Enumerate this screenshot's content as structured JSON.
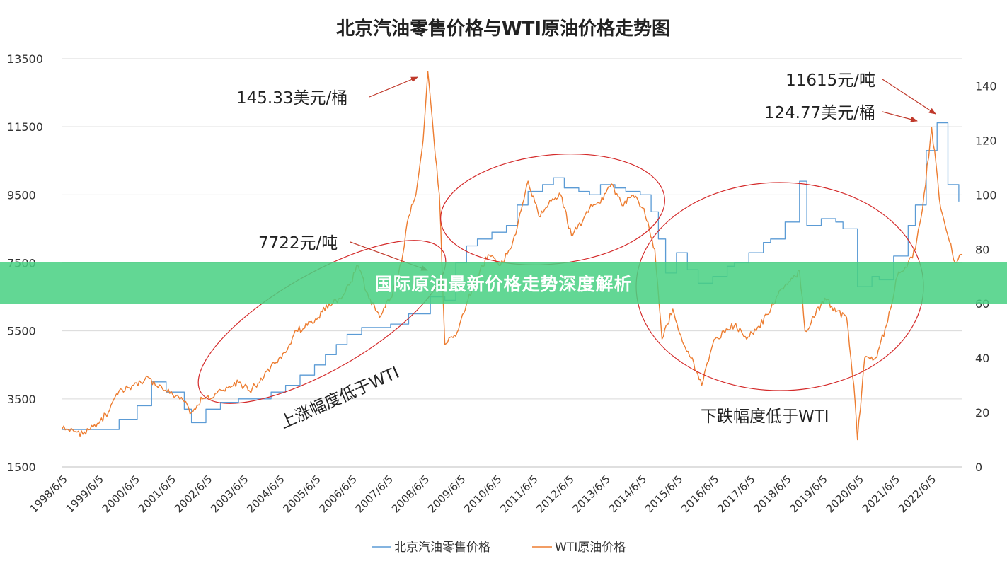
{
  "banner": {
    "text": "国际原油最新价格走势深度解析"
  },
  "chart_data": {
    "type": "line",
    "title": "北京汽油零售价格与WTI原油价格走势图",
    "x_tick_labels": [
      "1998/6/5",
      "1999/6/5",
      "2000/6/5",
      "2001/6/5",
      "2002/6/5",
      "2003/6/5",
      "2004/6/5",
      "2005/6/5",
      "2006/6/5",
      "2007/6/5",
      "2008/6/5",
      "2009/6/5",
      "2010/6/5",
      "2011/6/5",
      "2012/6/5",
      "2013/6/5",
      "2014/6/5",
      "2015/6/5",
      "2016/6/5",
      "2017/6/5",
      "2018/6/5",
      "2019/6/5",
      "2020/6/5",
      "2021/6/5",
      "2022/6/5"
    ],
    "y_left": {
      "ylim": [
        1500,
        13500
      ],
      "ticks": [
        1500,
        3500,
        5500,
        7500,
        9500,
        11500,
        13500
      ]
    },
    "y_right": {
      "ylim": [
        0,
        150
      ],
      "ticks": [
        0,
        20,
        40,
        60,
        80,
        100,
        120,
        140
      ]
    },
    "grid": true,
    "legend_position": "bottom",
    "colors": {
      "beijing": "#5b9bd5",
      "wti": "#ed7d31",
      "ellipse": "#d42a2a",
      "arrow": "#c0392b"
    },
    "series": [
      {
        "name": "北京汽油零售价格",
        "axis": "left",
        "x": [
          1998.43,
          1999.0,
          1999.7,
          2000.0,
          2000.5,
          2000.9,
          2001.3,
          2001.8,
          2002.0,
          2002.4,
          2002.8,
          2003.3,
          2003.8,
          2004.2,
          2004.6,
          2005.0,
          2005.4,
          2005.7,
          2006.0,
          2006.3,
          2006.7,
          2007.0,
          2007.5,
          2008.0,
          2008.6,
          2009.0,
          2009.3,
          2009.6,
          2009.9,
          2010.3,
          2010.7,
          2011.0,
          2011.3,
          2011.7,
          2012.0,
          2012.3,
          2012.7,
          2013.0,
          2013.3,
          2013.7,
          2014.0,
          2014.4,
          2014.7,
          2014.9,
          2015.1,
          2015.4,
          2015.7,
          2016.0,
          2016.4,
          2016.8,
          2017.0,
          2017.4,
          2017.8,
          2018.0,
          2018.4,
          2018.8,
          2019.0,
          2019.4,
          2019.8,
          2020.0,
          2020.4,
          2020.8,
          2021.0,
          2021.4,
          2021.8,
          2022.0,
          2022.3,
          2022.6,
          2022.9,
          2023.2
        ],
        "values": [
          2600,
          2600,
          2600,
          2900,
          3300,
          4000,
          3700,
          3200,
          2800,
          3200,
          3400,
          3500,
          3500,
          3700,
          3900,
          4200,
          4500,
          4800,
          5100,
          5400,
          5600,
          5600,
          5700,
          6000,
          6500,
          6400,
          7500,
          8000,
          8200,
          8400,
          8600,
          9200,
          9600,
          9800,
          10000,
          9700,
          9600,
          9500,
          9800,
          9700,
          9600,
          9500,
          9000,
          8200,
          7200,
          7800,
          7300,
          6900,
          7100,
          7400,
          7500,
          7800,
          8100,
          8200,
          8700,
          9900,
          8600,
          8800,
          8700,
          8500,
          6800,
          7100,
          7000,
          7700,
          8600,
          9200,
          10800,
          11615,
          9800,
          9300
        ]
      },
      {
        "name": "WTI原油价格",
        "axis": "right",
        "x": [
          1998.43,
          1998.8,
          1999.0,
          1999.4,
          1999.7,
          2000.0,
          2000.4,
          2000.8,
          2001.0,
          2001.4,
          2001.8,
          2002.0,
          2002.3,
          2002.7,
          2003.0,
          2003.3,
          2003.6,
          2004.0,
          2004.3,
          2004.6,
          2004.9,
          2005.2,
          2005.5,
          2005.8,
          2006.1,
          2006.4,
          2006.6,
          2006.9,
          2007.2,
          2007.5,
          2007.8,
          2008.0,
          2008.2,
          2008.4,
          2008.53,
          2008.7,
          2008.85,
          2009.0,
          2009.3,
          2009.6,
          2009.9,
          2010.2,
          2010.5,
          2010.8,
          2011.0,
          2011.3,
          2011.6,
          2011.9,
          2012.2,
          2012.5,
          2012.8,
          2013.0,
          2013.3,
          2013.6,
          2013.9,
          2014.2,
          2014.5,
          2014.8,
          2015.0,
          2015.3,
          2015.6,
          2015.8,
          2016.1,
          2016.4,
          2016.7,
          2017.0,
          2017.3,
          2017.6,
          2017.9,
          2018.2,
          2018.5,
          2018.8,
          2018.95,
          2019.2,
          2019.5,
          2019.8,
          2020.1,
          2020.3,
          2020.4,
          2020.6,
          2020.9,
          2021.2,
          2021.5,
          2021.8,
          2022.0,
          2022.2,
          2022.45,
          2022.7,
          2022.9,
          2023.1,
          2023.3
        ],
        "values": [
          14,
          13,
          12,
          16,
          20,
          28,
          30,
          33,
          30,
          27,
          24,
          20,
          25,
          27,
          29,
          31,
          28,
          33,
          38,
          42,
          50,
          52,
          55,
          60,
          62,
          68,
          74,
          62,
          55,
          62,
          75,
          92,
          100,
          120,
          145.33,
          120,
          100,
          45,
          48,
          60,
          70,
          78,
          74,
          80,
          88,
          105,
          92,
          98,
          100,
          85,
          90,
          95,
          97,
          104,
          96,
          100,
          95,
          80,
          47,
          58,
          45,
          40,
          30,
          45,
          50,
          52,
          48,
          50,
          56,
          63,
          68,
          72,
          50,
          55,
          62,
          57,
          55,
          30,
          10,
          40,
          40,
          52,
          70,
          75,
          80,
          95,
          124.77,
          95,
          85,
          75,
          78
        ]
      }
    ],
    "annotations": [
      {
        "text": "145.33美元/桶"
      },
      {
        "text": "7722元/吨"
      },
      {
        "text": "11615元/吨"
      },
      {
        "text": "124.77美元/桶"
      },
      {
        "text": "上涨幅度低于WTI"
      },
      {
        "text": "下跌幅度低于WTI"
      }
    ]
  }
}
